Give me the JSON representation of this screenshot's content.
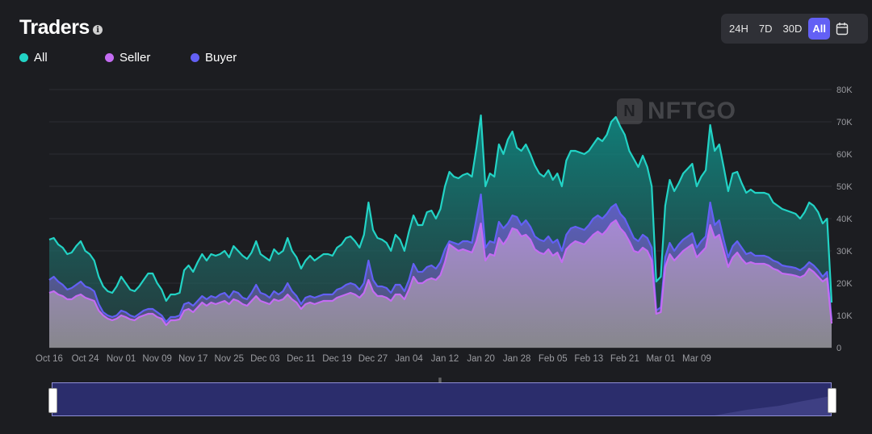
{
  "header": {
    "title": "Traders",
    "info_icon": "info-icon"
  },
  "legend": [
    {
      "label": "All",
      "color": "#22d3c5"
    },
    {
      "label": "Seller",
      "color": "#c46cf2"
    },
    {
      "label": "Buyer",
      "color": "#6360f5"
    }
  ],
  "range_selector": {
    "options": [
      "24H",
      "7D",
      "30D",
      "All"
    ],
    "active": "All",
    "calendar_icon": "calendar-icon"
  },
  "watermark": {
    "text": "NFTGO"
  },
  "chart_data": {
    "type": "area",
    "x_tick_labels": [
      "Oct 16",
      "Oct 24",
      "Nov 01",
      "Nov 09",
      "Nov 17",
      "Nov 25",
      "Dec 03",
      "Dec 11",
      "Dec 19",
      "Dec 27",
      "Jan 04",
      "Jan 12",
      "Jan 20",
      "Jan 28",
      "Feb 05",
      "Feb 13",
      "Feb 21",
      "Mar 01",
      "Mar 09"
    ],
    "y_tick_labels": [
      "0",
      "10K",
      "20K",
      "30K",
      "40K",
      "50K",
      "60K",
      "70K",
      "80K"
    ],
    "ylim": [
      0,
      80000
    ],
    "x_start": "Oct 16",
    "x_end": "Mar 16",
    "grid": true,
    "legend_position": "top-left",
    "series": [
      {
        "name": "All",
        "color": "#22d3c5",
        "values": [
          33500,
          34000,
          32000,
          31000,
          29000,
          29500,
          31500,
          33000,
          30000,
          29000,
          27000,
          22000,
          19000,
          17500,
          17000,
          19000,
          22000,
          20000,
          18000,
          17500,
          19000,
          21000,
          23000,
          23000,
          20000,
          18000,
          14500,
          16500,
          16500,
          17000,
          24000,
          25500,
          23500,
          26500,
          29000,
          27000,
          29000,
          28500,
          29000,
          30000,
          28000,
          31500,
          30000,
          28500,
          27500,
          29500,
          33000,
          29000,
          28000,
          27000,
          30500,
          29000,
          30000,
          34000,
          30000,
          28000,
          24500,
          27000,
          28500,
          27000,
          28000,
          29000,
          29000,
          28500,
          31000,
          32000,
          34000,
          34500,
          33000,
          31000,
          35000,
          45000,
          36500,
          34000,
          33500,
          32500,
          30000,
          35000,
          33500,
          30000,
          36000,
          41000,
          38000,
          38000,
          42000,
          42500,
          40000,
          43000,
          50000,
          54500,
          53000,
          52500,
          53500,
          54000,
          53000,
          62000,
          72000,
          50000,
          54000,
          53000,
          63000,
          60000,
          64500,
          67000,
          62000,
          61000,
          63000,
          60000,
          56500,
          54000,
          53000,
          55000,
          52000,
          54000,
          50000,
          58000,
          61000,
          61000,
          60500,
          60000,
          61000,
          63000,
          65000,
          64000,
          66000,
          70000,
          71500,
          68500,
          66000,
          61000,
          58500,
          56000,
          59500,
          56000,
          50000,
          20500,
          22000,
          44000,
          52000,
          48500,
          51000,
          54000,
          55500,
          57000,
          50000,
          53000,
          55000,
          69000,
          61000,
          63000,
          56000,
          48500,
          54000,
          54500,
          51000,
          48000,
          49000,
          48000,
          48000,
          48000,
          47500,
          45000,
          44000,
          43000,
          42500,
          42000,
          41500,
          40000,
          42000,
          45000,
          44000,
          42000,
          38500,
          40000,
          14000
        ]
      },
      {
        "name": "Seller",
        "color": "#c46cf2",
        "values": [
          17000,
          17500,
          16500,
          16000,
          15000,
          15000,
          16000,
          16500,
          15500,
          15000,
          14500,
          11500,
          10000,
          9000,
          8500,
          9000,
          10000,
          9500,
          8800,
          8500,
          9500,
          10000,
          10500,
          10500,
          9500,
          9000,
          7000,
          8500,
          8500,
          8800,
          11500,
          12000,
          11000,
          12500,
          14000,
          13000,
          14000,
          13500,
          14000,
          14500,
          13500,
          15000,
          14500,
          13500,
          13000,
          14500,
          16000,
          14500,
          14000,
          13500,
          15000,
          14500,
          15000,
          16500,
          15000,
          14000,
          12000,
          13500,
          14000,
          13500,
          14000,
          14500,
          14500,
          14500,
          15500,
          16000,
          16500,
          17000,
          16500,
          15500,
          17000,
          21000,
          17500,
          16000,
          16000,
          15500,
          14500,
          16500,
          16500,
          15000,
          18000,
          22000,
          20000,
          20000,
          21000,
          21500,
          21000,
          22500,
          26500,
          32000,
          31000,
          30000,
          30500,
          30000,
          29500,
          33000,
          38500,
          27000,
          29000,
          28500,
          34000,
          32000,
          34000,
          37000,
          36500,
          34500,
          35000,
          33500,
          30500,
          29500,
          29000,
          30500,
          28500,
          29500,
          26500,
          30500,
          32000,
          33000,
          32500,
          32000,
          33500,
          35000,
          36000,
          35000,
          36500,
          38500,
          39500,
          37000,
          35500,
          33000,
          30000,
          29500,
          31000,
          30000,
          27000,
          10500,
          11000,
          25000,
          29000,
          27000,
          28500,
          30000,
          31000,
          32000,
          28000,
          29500,
          31000,
          38000,
          34000,
          35000,
          30000,
          25000,
          28000,
          29500,
          27500,
          26000,
          26500,
          26000,
          26000,
          26000,
          25500,
          24500,
          24000,
          23000,
          22800,
          22600,
          22300,
          21800,
          22500,
          24500,
          23500,
          22000,
          20500,
          21500,
          7500
        ]
      },
      {
        "name": "Buyer",
        "color": "#6360f5",
        "values": [
          21000,
          22000,
          20500,
          19500,
          18000,
          18500,
          19500,
          20500,
          19000,
          18500,
          17500,
          13500,
          11000,
          10000,
          9500,
          10000,
          11500,
          11000,
          10000,
          9500,
          10500,
          11500,
          12000,
          12000,
          11000,
          10000,
          8000,
          9500,
          9500,
          10000,
          13500,
          14000,
          13000,
          14500,
          16000,
          15000,
          16000,
          15500,
          16500,
          17000,
          15500,
          17500,
          17000,
          15500,
          15000,
          17000,
          19500,
          17000,
          16500,
          15500,
          17500,
          16500,
          17500,
          20000,
          17500,
          16000,
          13500,
          15500,
          16000,
          15500,
          16000,
          16500,
          16500,
          16500,
          18000,
          18500,
          19500,
          20000,
          19500,
          18000,
          20000,
          27000,
          21000,
          19000,
          19000,
          18500,
          17000,
          19500,
          19500,
          17500,
          21000,
          26000,
          23500,
          23500,
          25000,
          25500,
          24500,
          26500,
          30500,
          33000,
          32500,
          32000,
          33000,
          33000,
          32500,
          40000,
          47500,
          31000,
          33000,
          32500,
          39000,
          37000,
          38500,
          41000,
          40500,
          38000,
          39500,
          37500,
          34500,
          33500,
          33000,
          34500,
          32500,
          33500,
          30000,
          35000,
          37000,
          37500,
          37000,
          36500,
          38000,
          40000,
          41000,
          40000,
          41500,
          43500,
          44500,
          41500,
          40000,
          37000,
          34000,
          33000,
          35000,
          34000,
          31000,
          11500,
          12500,
          28000,
          32500,
          30000,
          32000,
          33500,
          34500,
          35500,
          31000,
          33000,
          34500,
          45000,
          38000,
          39500,
          33500,
          28000,
          31500,
          33000,
          31000,
          29000,
          29500,
          28500,
          28500,
          28500,
          28000,
          27000,
          26500,
          25500,
          25200,
          25000,
          24700,
          24000,
          25000,
          26500,
          25500,
          24000,
          22000,
          23500,
          8500
        ]
      }
    ]
  }
}
